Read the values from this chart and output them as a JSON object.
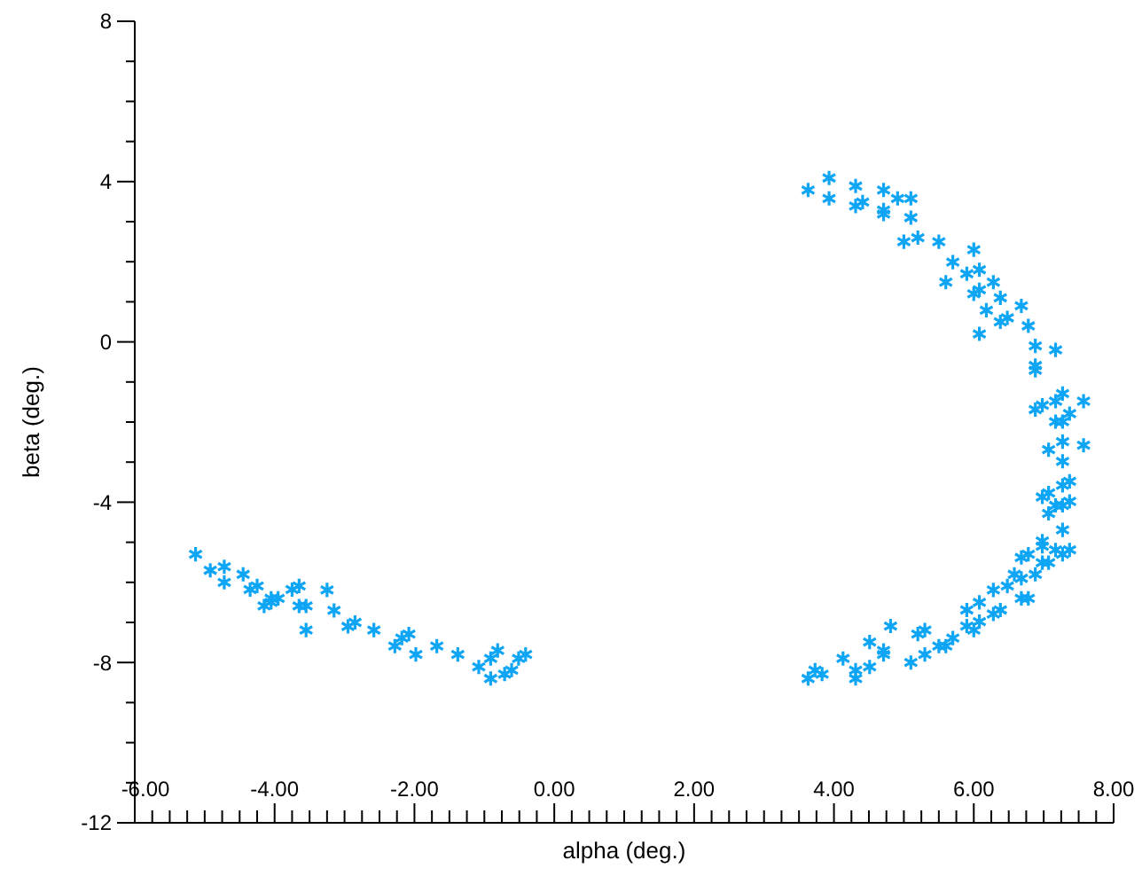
{
  "chart_data": {
    "type": "scatter",
    "xlabel": "alpha (deg.)",
    "ylabel": "beta (deg.)",
    "marker": "cross",
    "grid": false,
    "xlim": [
      -6,
      8
    ],
    "ylim": [
      -12,
      8
    ],
    "xticks": [
      {
        "value": -6,
        "label": "-6.00"
      },
      {
        "value": -5.75,
        "label": null
      },
      {
        "value": -5.5,
        "label": null
      },
      {
        "value": -5.25,
        "label": null
      },
      {
        "value": -5,
        "label": null
      },
      {
        "value": -4.75,
        "label": null
      },
      {
        "value": -4.5,
        "label": null
      },
      {
        "value": -4.25,
        "label": null
      },
      {
        "value": -4,
        "label": "-4.00"
      },
      {
        "value": -3.75,
        "label": null
      },
      {
        "value": -3.5,
        "label": null
      },
      {
        "value": -3.25,
        "label": null
      },
      {
        "value": -3,
        "label": null
      },
      {
        "value": -2.75,
        "label": null
      },
      {
        "value": -2.5,
        "label": null
      },
      {
        "value": -2.25,
        "label": null
      },
      {
        "value": -2,
        "label": "-2.00"
      },
      {
        "value": -1.75,
        "label": null
      },
      {
        "value": -1.5,
        "label": null
      },
      {
        "value": -1.25,
        "label": null
      },
      {
        "value": -1,
        "label": null
      },
      {
        "value": -0.75,
        "label": null
      },
      {
        "value": -0.5,
        "label": null
      },
      {
        "value": -0.25,
        "label": null
      },
      {
        "value": 0,
        "label": "0.00"
      },
      {
        "value": 0.25,
        "label": null
      },
      {
        "value": 0.5,
        "label": null
      },
      {
        "value": 0.75,
        "label": null
      },
      {
        "value": 1,
        "label": null
      },
      {
        "value": 1.25,
        "label": null
      },
      {
        "value": 1.5,
        "label": null
      },
      {
        "value": 1.75,
        "label": null
      },
      {
        "value": 2,
        "label": "2.00"
      },
      {
        "value": 2.25,
        "label": null
      },
      {
        "value": 2.5,
        "label": null
      },
      {
        "value": 2.75,
        "label": null
      },
      {
        "value": 3,
        "label": null
      },
      {
        "value": 3.25,
        "label": null
      },
      {
        "value": 3.5,
        "label": null
      },
      {
        "value": 3.75,
        "label": null
      },
      {
        "value": 4,
        "label": "4.00"
      },
      {
        "value": 4.25,
        "label": null
      },
      {
        "value": 4.5,
        "label": null
      },
      {
        "value": 4.75,
        "label": null
      },
      {
        "value": 5,
        "label": null
      },
      {
        "value": 5.25,
        "label": null
      },
      {
        "value": 5.5,
        "label": null
      },
      {
        "value": 5.75,
        "label": null
      },
      {
        "value": 6,
        "label": "6.00"
      },
      {
        "value": 6.25,
        "label": null
      },
      {
        "value": 6.5,
        "label": null
      },
      {
        "value": 6.75,
        "label": null
      },
      {
        "value": 7,
        "label": null
      },
      {
        "value": 7.25,
        "label": null
      },
      {
        "value": 7.5,
        "label": null
      },
      {
        "value": 7.75,
        "label": null
      },
      {
        "value": 8,
        "label": "8.00"
      }
    ],
    "yticks": [
      -12,
      {
        "value": -11,
        "label": null
      },
      {
        "value": -10,
        "label": null
      },
      {
        "value": -9,
        "label": null
      },
      -8,
      {
        "value": -7,
        "label": null
      },
      {
        "value": -6,
        "label": null
      },
      {
        "value": -5,
        "label": null
      },
      -4,
      {
        "value": -3,
        "label": null
      },
      {
        "value": -2,
        "label": null
      },
      {
        "value": -1,
        "label": null
      },
      0,
      {
        "value": 1,
        "label": null
      },
      {
        "value": 2,
        "label": null
      },
      {
        "value": 3,
        "label": null
      },
      4,
      {
        "value": 5,
        "label": null
      },
      {
        "value": 6,
        "label": null
      },
      {
        "value": 7,
        "label": null
      },
      8
    ],
    "series": [
      {
        "color": "#0ea5f5",
        "x": [
          -5.13,
          -4.92,
          -4.72,
          -4.72,
          -4.45,
          -4.35,
          -4.25,
          -4.15,
          -4.05,
          -4.05,
          -3.95,
          -3.75,
          -3.65,
          -3.65,
          -3.55,
          -3.55,
          -3.25,
          -3.15,
          -2.95,
          -2.85,
          -2.58,
          -2.28,
          -2.18,
          -2.08,
          -1.98,
          -1.68,
          -1.38,
          -1.08,
          -0.91,
          -0.91,
          -0.81,
          -0.71,
          -0.61,
          -0.51,
          -0.41,
          3.63,
          3.93,
          3.93,
          4.31,
          4.31,
          4.41,
          4.71,
          4.71,
          4.71,
          4.91,
          5.1,
          5.1,
          5.0,
          5.2,
          5.5,
          6.0,
          5.7,
          5.9,
          6.08,
          5.6,
          6.08,
          6.0,
          6.28,
          6.38,
          6.18,
          6.48,
          6.38,
          6.68,
          6.78,
          6.08,
          6.88,
          7.17,
          6.88,
          6.88,
          7.27,
          7.17,
          7.57,
          6.98,
          6.88,
          7.37,
          7.17,
          7.27,
          7.27,
          7.07,
          7.57,
          7.27,
          7.37,
          7.27,
          6.98,
          7.07,
          7.17,
          7.27,
          7.37,
          7.07,
          7.27,
          6.98,
          6.98,
          7.17,
          7.27,
          7.37,
          6.68,
          6.78,
          6.98,
          7.07,
          6.58,
          6.68,
          6.88,
          6.48,
          6.28,
          6.68,
          6.78,
          6.08,
          6.28,
          6.38,
          5.9,
          5.9,
          6.0,
          6.08,
          5.7,
          5.5,
          5.6,
          5.3,
          5.2,
          5.3,
          5.1,
          4.81,
          4.51,
          4.71,
          4.71,
          4.51,
          4.31,
          4.31,
          4.13,
          3.63,
          3.73,
          3.83
        ],
        "values": [
          -5.3,
          -5.7,
          -5.61,
          -6.0,
          -5.8,
          -6.18,
          -6.09,
          -6.59,
          -6.4,
          -6.5,
          -6.4,
          -6.18,
          -6.09,
          -6.59,
          -6.59,
          -7.19,
          -6.19,
          -6.7,
          -7.1,
          -7.0,
          -7.19,
          -7.59,
          -7.39,
          -7.29,
          -7.8,
          -7.59,
          -7.8,
          -8.11,
          -7.9,
          -8.4,
          -7.7,
          -8.29,
          -8.19,
          -7.9,
          -7.8,
          3.79,
          4.09,
          3.58,
          3.89,
          3.39,
          3.49,
          3.79,
          3.29,
          3.19,
          3.58,
          3.58,
          3.1,
          2.5,
          2.6,
          2.5,
          2.3,
          1.99,
          1.7,
          1.8,
          1.49,
          1.3,
          1.2,
          1.49,
          1.1,
          0.79,
          0.6,
          0.5,
          0.9,
          0.4,
          0.2,
          -0.1,
          -0.2,
          -0.59,
          -0.71,
          -1.29,
          -1.48,
          -1.48,
          -1.58,
          -1.69,
          -1.79,
          -1.99,
          -1.99,
          -2.49,
          -2.69,
          -2.58,
          -2.98,
          -3.48,
          -3.58,
          -3.87,
          -3.77,
          -4.08,
          -4.08,
          -3.98,
          -4.28,
          -4.69,
          -4.97,
          -5.1,
          -5.19,
          -5.3,
          -5.19,
          -5.38,
          -5.3,
          -5.51,
          -5.51,
          -5.8,
          -5.9,
          -5.8,
          -6.09,
          -6.19,
          -6.4,
          -6.4,
          -6.5,
          -6.79,
          -6.69,
          -6.69,
          -7.09,
          -7.19,
          -6.98,
          -7.39,
          -7.59,
          -7.59,
          -7.19,
          -7.29,
          -7.8,
          -8.0,
          -7.09,
          -7.49,
          -7.7,
          -7.8,
          -8.11,
          -8.19,
          -8.4,
          -7.9,
          -8.4,
          -8.19,
          -8.29
        ]
      }
    ]
  }
}
